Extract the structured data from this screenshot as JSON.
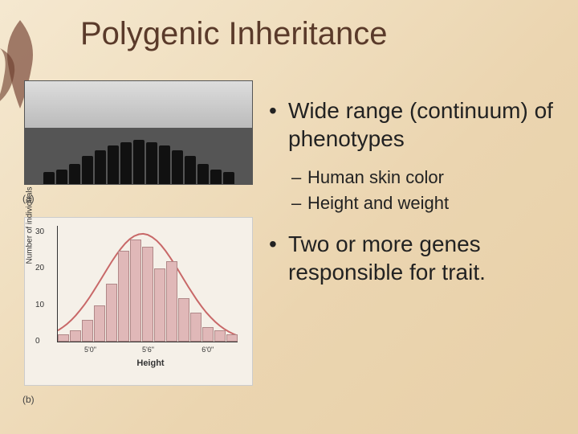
{
  "title": "Polygenic Inheritance",
  "panel_labels": {
    "a": "(a)",
    "b": "(b)"
  },
  "bullets": {
    "main1": "Wide range (continuum) of phenotypes",
    "sub1": "Human skin color",
    "sub2": "Height and weight",
    "main2": "Two or more genes responsible for trait."
  },
  "chart": {
    "type": "histogram",
    "x_label": "Height",
    "y_label": "Number of individuals",
    "y_ticks": [
      0,
      10,
      20,
      30
    ],
    "y_max": 32,
    "x_ticks": [
      "5'0\"",
      "5'6\"",
      "6'0\""
    ],
    "x_tick_positions": [
      0.18,
      0.5,
      0.83
    ],
    "bars": [
      {
        "h": 2
      },
      {
        "h": 3
      },
      {
        "h": 6
      },
      {
        "h": 10
      },
      {
        "h": 16
      },
      {
        "h": 25
      },
      {
        "h": 28
      },
      {
        "h": 26
      },
      {
        "h": 20
      },
      {
        "h": 22
      },
      {
        "h": 12
      },
      {
        "h": 8
      },
      {
        "h": 4
      },
      {
        "h": 3
      },
      {
        "h": 2
      }
    ],
    "bar_color": "#e0b8b8",
    "bar_border": "#b08888",
    "curve_color": "#c86868",
    "background": "#f5f0e8"
  },
  "photo": {
    "silhouette_heights": [
      15,
      18,
      25,
      35,
      42,
      48,
      52,
      55,
      52,
      48,
      42,
      35,
      25,
      18,
      15
    ]
  },
  "leaf_color": "#7a4a3a"
}
